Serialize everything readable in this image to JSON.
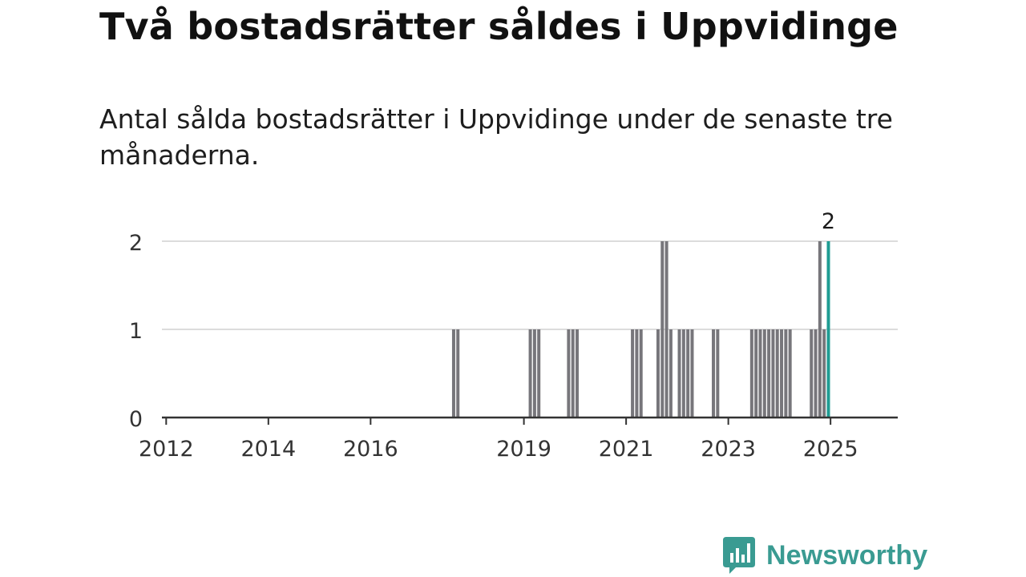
{
  "title": "Två bostadsrätter såldes i Uppvidinge",
  "subtitle": "Antal sålda bostadsrätter i Uppvidinge under de senaste tre månaderna.",
  "brand": {
    "name": "Newsworthy",
    "color": "#3a9b92",
    "icon": "newsworthy-bar-chart-bubble-icon"
  },
  "chart_data": {
    "type": "bar",
    "x_kind": "monthly",
    "ylim": [
      0,
      2
    ],
    "yticks": [
      0,
      1,
      2
    ],
    "xticks": [
      "2012",
      "2014",
      "2016",
      "2019",
      "2021",
      "2023",
      "2025"
    ],
    "grid": true,
    "bar_color": "#77767b",
    "highlight_color": "#1f9c93",
    "highlight_label": "2",
    "points": [
      {
        "month": "2017-08",
        "value": 1
      },
      {
        "month": "2017-09",
        "value": 1
      },
      {
        "month": "2019-02",
        "value": 1
      },
      {
        "month": "2019-03",
        "value": 1
      },
      {
        "month": "2019-04",
        "value": 1
      },
      {
        "month": "2019-11",
        "value": 1
      },
      {
        "month": "2019-12",
        "value": 1
      },
      {
        "month": "2020-01",
        "value": 1
      },
      {
        "month": "2021-02",
        "value": 1
      },
      {
        "month": "2021-03",
        "value": 1
      },
      {
        "month": "2021-04",
        "value": 1
      },
      {
        "month": "2021-08",
        "value": 1
      },
      {
        "month": "2021-09",
        "value": 2
      },
      {
        "month": "2021-10",
        "value": 2
      },
      {
        "month": "2021-11",
        "value": 1
      },
      {
        "month": "2022-01",
        "value": 1
      },
      {
        "month": "2022-02",
        "value": 1
      },
      {
        "month": "2022-03",
        "value": 1
      },
      {
        "month": "2022-04",
        "value": 1
      },
      {
        "month": "2022-09",
        "value": 1
      },
      {
        "month": "2022-10",
        "value": 1
      },
      {
        "month": "2023-06",
        "value": 1
      },
      {
        "month": "2023-07",
        "value": 1
      },
      {
        "month": "2023-08",
        "value": 1
      },
      {
        "month": "2023-09",
        "value": 1
      },
      {
        "month": "2023-10",
        "value": 1
      },
      {
        "month": "2023-11",
        "value": 1
      },
      {
        "month": "2023-12",
        "value": 1
      },
      {
        "month": "2024-01",
        "value": 1
      },
      {
        "month": "2024-02",
        "value": 1
      },
      {
        "month": "2024-03",
        "value": 1
      },
      {
        "month": "2024-08",
        "value": 1
      },
      {
        "month": "2024-09",
        "value": 1
      },
      {
        "month": "2024-10",
        "value": 2
      },
      {
        "month": "2024-11",
        "value": 1
      },
      {
        "month": "2024-12",
        "value": 2,
        "highlight": true
      }
    ]
  }
}
